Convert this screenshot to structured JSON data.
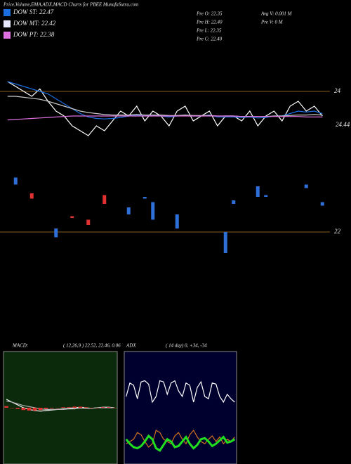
{
  "chart_data": [
    {
      "type": "line",
      "title": "Price,Volume,EMA,ADX,MACD Charts for PBEE MunafaSutra.com",
      "legend": [
        {
          "label": "DOW ST: 22.47",
          "color": "#1a6ee0"
        },
        {
          "label": "DOW MT: 22.42",
          "color": "#e8e8ff"
        },
        {
          "label": "DOW PT: 22.38",
          "color": "#e070e0"
        }
      ],
      "info": [
        "Pre   O: 22.35",
        "Pre   H: 22.40",
        "Pre   L: 22.35",
        "Pre   C: 22.40",
        "Avg V: 0.001 M",
        "Pre   V: 0  M"
      ],
      "annotations": [
        "24.44"
      ],
      "ylim": [
        23,
        25
      ],
      "yticks": [
        24
      ],
      "series": [
        {
          "color": "#ffffff",
          "values": [
            24.2,
            24.1,
            24.0,
            23.9,
            24.05,
            23.8,
            23.6,
            23.5,
            23.3,
            23.2,
            23.1,
            23.3,
            23.2,
            23.4,
            23.6,
            23.5,
            23.7,
            23.4,
            23.6,
            23.5,
            23.3,
            23.6,
            23.7,
            23.4,
            23.5,
            23.6,
            23.3,
            23.5,
            23.5,
            23.4,
            23.6,
            23.3,
            23.5,
            23.6,
            23.4,
            23.7,
            23.8,
            23.6,
            23.7,
            23.5
          ]
        },
        {
          "color": "#1a6ee0",
          "values": [
            24.2,
            24.15,
            24.1,
            24.05,
            24.0,
            23.95,
            23.85,
            23.75,
            23.65,
            23.55,
            23.48,
            23.45,
            23.44,
            23.45,
            23.47,
            23.5,
            23.52,
            23.5,
            23.52,
            23.5,
            23.48,
            23.5,
            23.52,
            23.5,
            23.5,
            23.52,
            23.48,
            23.48,
            23.48,
            23.47,
            23.48,
            23.46,
            23.47,
            23.5,
            23.5,
            23.55,
            23.6,
            23.58,
            23.6,
            23.55
          ]
        },
        {
          "color": "#c8c8c8",
          "values": [
            23.9,
            23.9,
            23.88,
            23.86,
            23.84,
            23.8,
            23.75,
            23.7,
            23.65,
            23.6,
            23.57,
            23.55,
            23.53,
            23.52,
            23.52,
            23.52,
            23.53,
            23.52,
            23.52,
            23.52,
            23.51,
            23.51,
            23.52,
            23.51,
            23.51,
            23.51,
            23.5,
            23.5,
            23.5,
            23.49,
            23.49,
            23.49,
            23.49,
            23.5,
            23.5,
            23.51,
            23.52,
            23.52,
            23.53,
            23.52
          ]
        },
        {
          "color": "#e070e0",
          "values": [
            23.42,
            23.43,
            23.44,
            23.45,
            23.46,
            23.47,
            23.48,
            23.49,
            23.5,
            23.5,
            23.5,
            23.5,
            23.5,
            23.5,
            23.5,
            23.5,
            23.5,
            23.5,
            23.5,
            23.5,
            23.5,
            23.5,
            23.5,
            23.5,
            23.5,
            23.5,
            23.5,
            23.5,
            23.5,
            23.49,
            23.49,
            23.49,
            23.49,
            23.49,
            23.49,
            23.49,
            23.49,
            23.48,
            23.48,
            23.48
          ]
        }
      ]
    },
    {
      "type": "candlestick",
      "ylim": [
        21,
        24
      ],
      "yticks": [
        22
      ],
      "up_color": "#e03030",
      "down_color": "#2f6fd8",
      "x": [
        1,
        3,
        6,
        8,
        10,
        12,
        15,
        17,
        18,
        21,
        27,
        28,
        31,
        32,
        37,
        39
      ],
      "open": [
        23.55,
        22.95,
        22.1,
        22.4,
        22.2,
        22.8,
        22.7,
        23.0,
        22.85,
        22.5,
        22.0,
        22.9,
        23.3,
        23.05,
        23.35,
        22.85
      ],
      "close": [
        23.35,
        23.1,
        21.85,
        22.45,
        22.35,
        23.05,
        22.5,
        22.95,
        22.35,
        22.1,
        21.4,
        22.8,
        23.0,
        23.0,
        23.25,
        22.75
      ]
    },
    {
      "type": "line",
      "label": "MACD:",
      "params": "( 12,26,9 ) 22.52, 22.46, 0.06",
      "ylim": [
        -1,
        1
      ],
      "background": "#0b2a0b",
      "series": [
        {
          "color": "#ffffff",
          "values": [
            0.15,
            0.1,
            0.05,
            0.0,
            -0.03,
            -0.05,
            -0.06,
            -0.05,
            -0.04,
            -0.03,
            -0.02,
            -0.01,
            0,
            0.01,
            0.0,
            -0.01,
            0.0,
            0.01,
            0.01,
            0.0
          ]
        },
        {
          "color": "#b0b0b0",
          "values": [
            0.12,
            0.1,
            0.07,
            0.04,
            0.02,
            0.0,
            -0.02,
            -0.03,
            -0.03,
            -0.03,
            -0.03,
            -0.02,
            -0.02,
            -0.01,
            -0.01,
            -0.01,
            0,
            0,
            0,
            0
          ]
        },
        {
          "color": "#e03030",
          "kind": "bar",
          "values": [
            0.03,
            0,
            -0.02,
            -0.04,
            -0.05,
            -0.05,
            -0.04,
            -0.02,
            -0.01,
            0,
            0.01,
            0.01,
            0.02,
            0.02,
            0.01,
            0,
            0,
            0.01,
            0.01,
            0
          ]
        }
      ]
    },
    {
      "type": "line",
      "label": "ADX",
      "params": "( 14  day) 0, +34, -34",
      "ylim": [
        0,
        100
      ],
      "background": "#00002e",
      "series": [
        {
          "color": "#ffffff",
          "values": [
            60,
            72,
            70,
            58,
            73,
            74,
            71,
            55,
            60,
            74,
            73,
            62,
            72,
            74,
            65,
            60,
            72,
            70,
            55,
            68,
            73,
            60,
            58,
            72,
            71,
            60,
            55,
            62,
            58,
            55
          ]
        },
        {
          "color": "#d07020",
          "values": [
            18,
            20,
            22,
            28,
            26,
            20,
            15,
            18,
            30,
            28,
            22,
            20,
            18,
            25,
            28,
            22,
            18,
            26,
            30,
            24,
            20,
            18,
            22,
            25,
            20,
            24,
            18,
            22,
            20,
            24
          ]
        },
        {
          "color": "#20e020",
          "width": 3,
          "values": [
            22,
            18,
            15,
            14,
            16,
            20,
            25,
            22,
            14,
            12,
            17,
            22,
            20,
            15,
            16,
            20,
            24,
            18,
            14,
            17,
            22,
            23,
            20,
            16,
            18,
            21,
            24,
            19,
            20,
            22
          ]
        }
      ]
    }
  ]
}
